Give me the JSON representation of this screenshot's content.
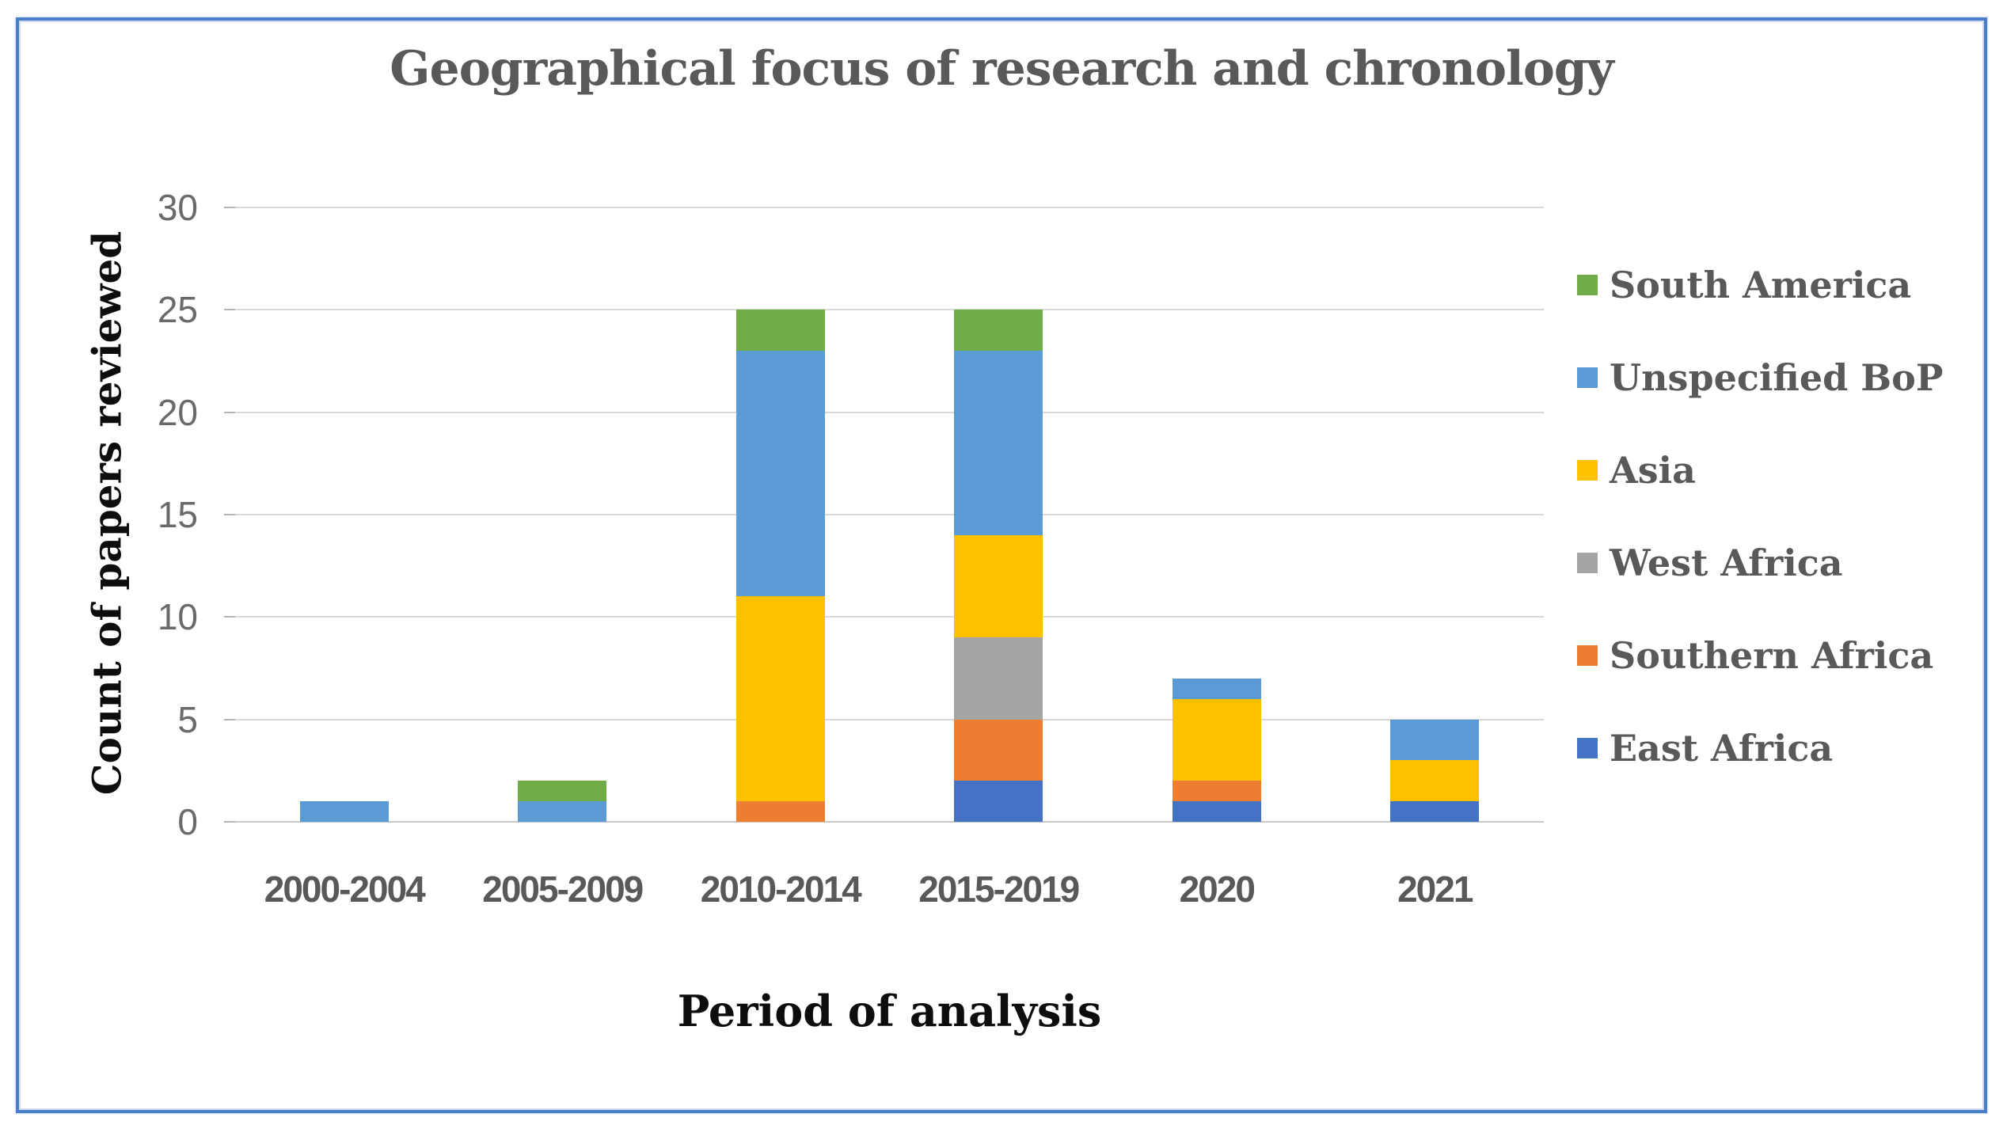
{
  "figure": {
    "selection_border_color": "#4a7ec8",
    "background": "#ffffff"
  },
  "chart_data": {
    "type": "bar",
    "stacked": true,
    "title": "Geographical focus of research and chronology",
    "xlabel": "Period of analysis",
    "ylabel": "Count of papers reviewed",
    "categories": [
      "2000-2004",
      "2005-2009",
      "2010-2014",
      "2015-2019",
      "2020",
      "2021"
    ],
    "series": [
      {
        "name": "East Africa",
        "color": "#4472c4",
        "values": [
          0,
          0,
          0,
          2,
          1,
          1
        ]
      },
      {
        "name": "Southern Africa",
        "color": "#ed7d31",
        "values": [
          0,
          0,
          1,
          3,
          1,
          0
        ]
      },
      {
        "name": "West Africa",
        "color": "#a5a5a5",
        "values": [
          0,
          0,
          0,
          4,
          0,
          0
        ]
      },
      {
        "name": "Asia",
        "color": "#ffc000",
        "values": [
          0,
          0,
          10,
          5,
          4,
          2
        ]
      },
      {
        "name": "Unspecified BoP",
        "color": "#5b9bd5",
        "values": [
          1,
          1,
          12,
          9,
          1,
          2
        ]
      },
      {
        "name": "South America",
        "color": "#70ad47",
        "values": [
          0,
          1,
          2,
          2,
          0,
          0
        ]
      }
    ],
    "totals": [
      1,
      2,
      25,
      25,
      7,
      5
    ],
    "legend": [
      "South America",
      "Unspecified BoP",
      "Asia",
      "West Africa",
      "Southern Africa",
      "East Africa"
    ],
    "legend_position": "right",
    "ylim": [
      0,
      30
    ],
    "yticks": [
      0,
      5,
      10,
      15,
      20,
      25,
      30
    ],
    "grid": true,
    "text_colors": {
      "title": "#595959",
      "axis_titles": "#0d0d0d",
      "y_ticks": "#6a6a6a",
      "x_ticks": "#595959",
      "legend": "#595959",
      "gridline": "#d9d9d9"
    }
  }
}
